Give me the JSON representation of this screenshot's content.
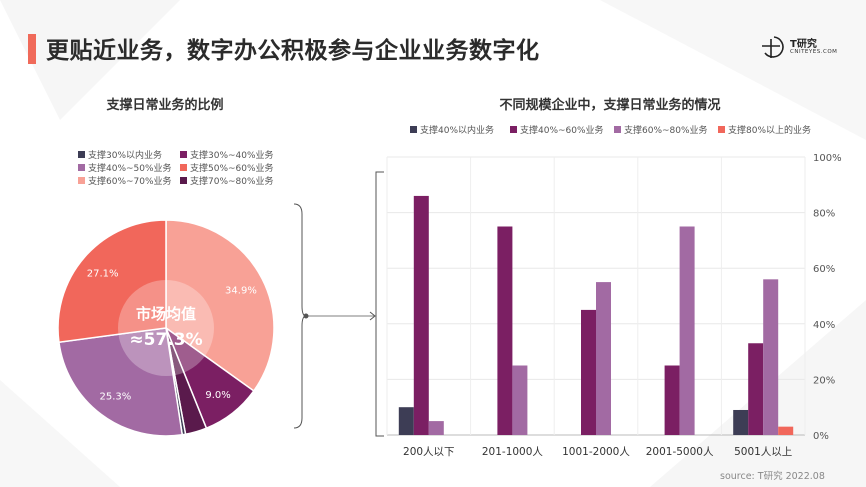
{
  "page": {
    "title": "更贴近业务，数字办公积极参与企业业务数字化",
    "brand": {
      "name": "T研究",
      "sub": "CNITEYES.COM"
    },
    "source": "source:   T研究 2022.08",
    "accent_color": "#f06a5a"
  },
  "center": {
    "line1": "市场均值",
    "line2": "≈57.3%"
  },
  "chart_data": [
    {
      "type": "pie",
      "title": "支撑日常业务的比例",
      "legend_position": "top-left",
      "slices": [
        {
          "name": "支撑30%以内业务",
          "value": 0.5,
          "color": "#3d3d55"
        },
        {
          "name": "支撑30%~40%业务",
          "value": 9.0,
          "color": "#7b1f63",
          "label": "9.0%"
        },
        {
          "name": "支撑40%~50%业务",
          "value": 25.3,
          "color": "#a26aa3",
          "label": "25.3%"
        },
        {
          "name": "支撑50%~60%业务",
          "value": 27.1,
          "color": "#f1675b",
          "label": "27.1%"
        },
        {
          "name": "支撑60%~70%业务",
          "value": 34.9,
          "color": "#f8a196",
          "label": "34.9%"
        },
        {
          "name": "支撑70%~80%业务",
          "value": 3.2,
          "color": "#5a1a4c"
        }
      ]
    },
    {
      "type": "bar",
      "title": "不同规模企业中，支撑日常业务的情况",
      "legend_position": "top",
      "categories": [
        "200人以下",
        "201-1000人",
        "1001-2000人",
        "2001-5000人",
        "5001人以上"
      ],
      "series": [
        {
          "name": "支撑40%以内业务",
          "color": "#3d3d55",
          "values": [
            10,
            0,
            0,
            0,
            9
          ]
        },
        {
          "name": "支撑40%~60%业务",
          "color": "#7b1f63",
          "values": [
            86,
            75,
            45,
            25,
            33
          ]
        },
        {
          "name": "支撑60%~80%业务",
          "color": "#a26aa3",
          "values": [
            5,
            25,
            55,
            75,
            56
          ]
        },
        {
          "name": "支撑80%以上的业务",
          "color": "#f1675b",
          "values": [
            0,
            0,
            0,
            0,
            3
          ]
        }
      ],
      "ylim": [
        0,
        100
      ],
      "yticks": [
        "0%",
        "20%",
        "40%",
        "60%",
        "80%",
        "100%"
      ],
      "y_axis_side": "right",
      "grid": true
    }
  ]
}
